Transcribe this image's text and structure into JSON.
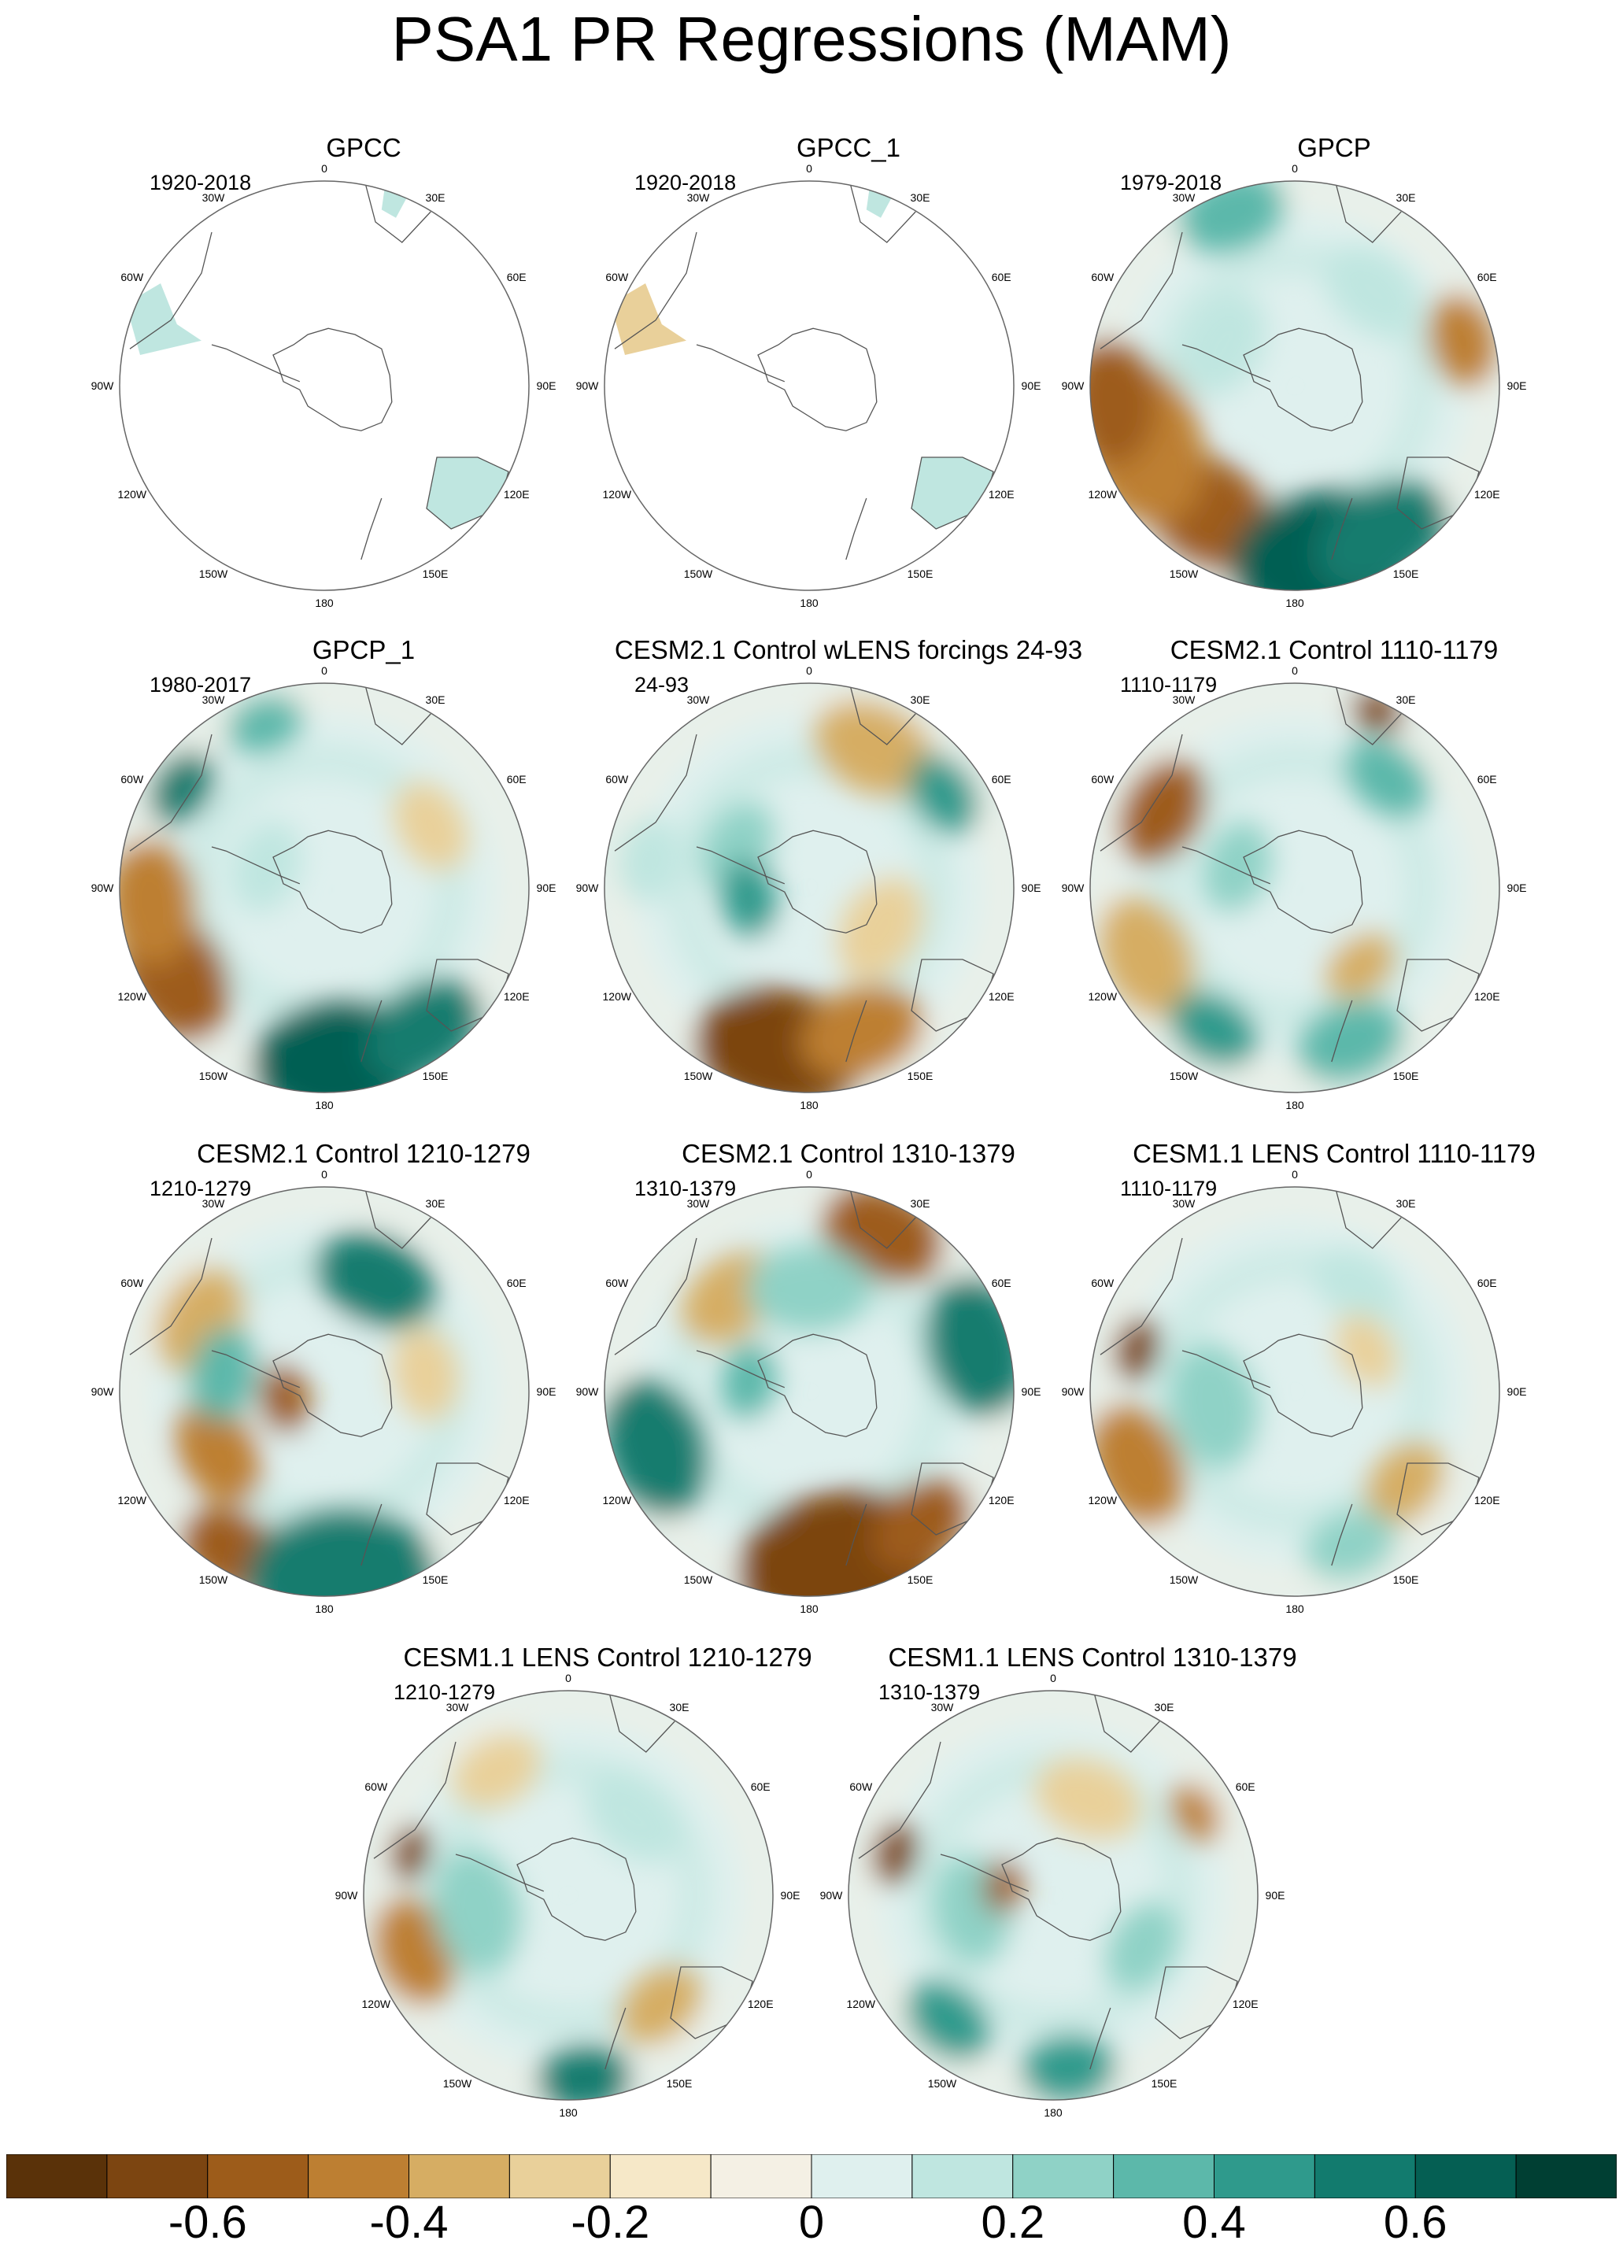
{
  "title": "PSA1 PR Regressions (MAM)",
  "lon_ticks": [
    "0",
    "30E",
    "60E",
    "90E",
    "120E",
    "150E",
    "180",
    "150W",
    "120W",
    "90W",
    "60W",
    "30W"
  ],
  "panels": [
    {
      "title": "GPCC",
      "period": "1920-2018",
      "coverage": "land-only"
    },
    {
      "title": "GPCC_1",
      "period": "1920-2018",
      "coverage": "land-only"
    },
    {
      "title": "GPCP",
      "period": "1979-2018",
      "coverage": "full"
    },
    {
      "title": "GPCP_1",
      "period": "1980-2017",
      "coverage": "full"
    },
    {
      "title": "CESM2.1 Control wLENS forcings 24-93",
      "period": "24-93",
      "coverage": "full"
    },
    {
      "title": "CESM2.1 Control 1110-1179",
      "period": "1110-1179",
      "coverage": "full"
    },
    {
      "title": "CESM2.1 Control 1210-1279",
      "period": "1210-1279",
      "coverage": "full"
    },
    {
      "title": "CESM2.1 Control 1310-1379",
      "period": "1310-1379",
      "coverage": "full"
    },
    {
      "title": "CESM1.1 LENS Control 1110-1179",
      "period": "1110-1179",
      "coverage": "full"
    },
    {
      "title": "CESM1.1 LENS Control 1210-1279",
      "period": "1210-1279",
      "coverage": "full"
    },
    {
      "title": "CESM1.1 LENS Control 1310-1379",
      "period": "1310-1379",
      "coverage": "full"
    }
  ],
  "colorbar": {
    "colors": [
      "#5a3209",
      "#7c4511",
      "#9d5c1a",
      "#bd7f32",
      "#d6ad63",
      "#e9d09a",
      "#f6e8c8",
      "#f4f0e4",
      "#dff0ee",
      "#bfe6e0",
      "#8fd2c6",
      "#5cb8aa",
      "#2f9a8c",
      "#127b6e",
      "#055f53",
      "#003f33"
    ],
    "labels": [
      "-0.6",
      "-0.4",
      "-0.2",
      "0",
      "0.2",
      "0.4",
      "0.6"
    ],
    "label_values": [
      -0.6,
      -0.4,
      -0.2,
      0,
      0.2,
      0.4,
      0.6
    ],
    "min": -0.8,
    "max": 0.8
  }
}
